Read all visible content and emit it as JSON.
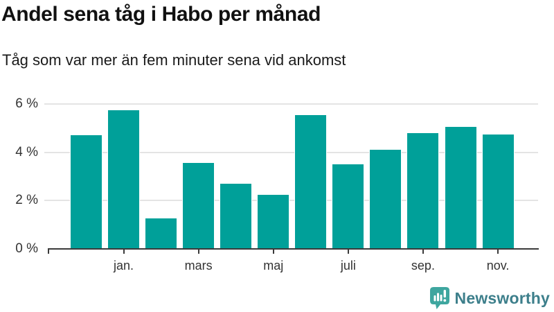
{
  "header": {
    "title": "Andel sena tåg i Habo per månad",
    "subtitle": "Tåg som var mer än fem minuter sena vid ankomst"
  },
  "chart_data": {
    "type": "bar",
    "title": "Andel sena tåg i Habo per månad",
    "subtitle": "Tåg som var mer än fem minuter sena vid ankomst",
    "unit": "%",
    "values": [
      4.7,
      5.75,
      1.25,
      3.55,
      2.7,
      2.25,
      5.55,
      3.5,
      4.1,
      4.8,
      5.05,
      4.75
    ],
    "x_tick_labels": [
      "",
      "jan.",
      "",
      "mars",
      "",
      "maj",
      "",
      "juli",
      "",
      "sep.",
      "",
      "nov."
    ],
    "y_ticks": [
      {
        "value": 0,
        "label": "0 %"
      },
      {
        "value": 2,
        "label": "2 %"
      },
      {
        "value": 4,
        "label": "4 %"
      },
      {
        "value": 6,
        "label": "6 %"
      }
    ],
    "ylim": [
      0,
      6
    ],
    "grid": "horizontal",
    "legend": "none",
    "bar_color": "#00a099"
  },
  "footer": {
    "brand": "Newsworthy",
    "icon": "newsworthy-logo-icon",
    "icon_color": "#3ea69f",
    "brand_color": "#3d7f8b"
  },
  "colors": {
    "bar": "#00a099",
    "axis_text": "#333333",
    "gridline": "#e4e4e4",
    "axis_line": "#3a3a3a",
    "title": "#111111",
    "background": "#ffffff"
  }
}
